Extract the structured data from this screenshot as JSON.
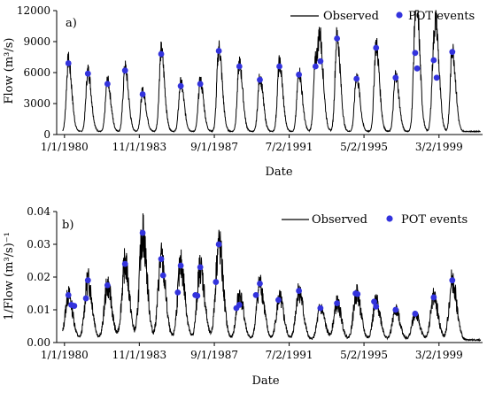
{
  "chart_data": [
    {
      "type": "line",
      "panel_label": "a)",
      "xlabel": "Date",
      "ylabel": "Flow (m³/s)",
      "ylim": [
        0,
        12000
      ],
      "y_ticks": [
        "0",
        "3000",
        "6000",
        "9000",
        "12000"
      ],
      "y_tick_values": [
        0,
        3000,
        6000,
        9000,
        12000
      ],
      "x_ticks": [
        "1/1/1980",
        "11/1/1983",
        "9/1/1987",
        "7/2/1991",
        "5/2/1995",
        "3/2/1999"
      ],
      "x_tick_values": [
        1980.0,
        1983.83,
        1987.67,
        1991.5,
        1995.33,
        1999.17
      ],
      "xlim": [
        1979.6,
        2001.4
      ],
      "legend": [
        {
          "label": "Observed",
          "kind": "line",
          "color": "#000000"
        },
        {
          "label": "POT events",
          "kind": "marker",
          "color": "#3333dd"
        }
      ],
      "legend_position": "top-right",
      "baseflow": 300,
      "observed_peaks": [
        {
          "x": 1980.2,
          "y": 6900
        },
        {
          "x": 1981.2,
          "y": 5900
        },
        {
          "x": 1982.2,
          "y": 4900
        },
        {
          "x": 1983.1,
          "y": 6200
        },
        {
          "x": 1984.0,
          "y": 3900
        },
        {
          "x": 1984.95,
          "y": 7800
        },
        {
          "x": 1985.95,
          "y": 4700
        },
        {
          "x": 1986.95,
          "y": 4900
        },
        {
          "x": 1987.9,
          "y": 8100
        },
        {
          "x": 1988.95,
          "y": 6600
        },
        {
          "x": 1990.0,
          "y": 5300
        },
        {
          "x": 1991.0,
          "y": 6600
        },
        {
          "x": 1992.0,
          "y": 5800
        },
        {
          "x": 1992.85,
          "y": 6600
        },
        {
          "x": 1993.1,
          "y": 7100
        },
        {
          "x": 1993.95,
          "y": 9300
        },
        {
          "x": 1994.95,
          "y": 5400
        },
        {
          "x": 1995.95,
          "y": 8400
        },
        {
          "x": 1996.95,
          "y": 5500
        },
        {
          "x": 1997.95,
          "y": 7900
        },
        {
          "x": 1998.05,
          "y": 6400
        },
        {
          "x": 1998.9,
          "y": 7200
        },
        {
          "x": 1999.05,
          "y": 5500
        },
        {
          "x": 1999.85,
          "y": 8000
        }
      ],
      "pot_events": {
        "x": [
          1980.2,
          1981.2,
          1982.2,
          1983.1,
          1984.0,
          1984.95,
          1985.95,
          1986.95,
          1987.9,
          1988.95,
          1990.0,
          1991.0,
          1992.0,
          1992.85,
          1993.1,
          1993.95,
          1994.95,
          1995.95,
          1996.95,
          1997.95,
          1998.05,
          1998.9,
          1999.05,
          1999.85
        ],
        "y": [
          6900,
          5900,
          4900,
          6200,
          3900,
          7800,
          4700,
          4900,
          8100,
          6600,
          5300,
          6600,
          5800,
          6600,
          7100,
          9300,
          5400,
          8400,
          5500,
          7900,
          6400,
          7200,
          5500,
          8000
        ]
      }
    },
    {
      "type": "line",
      "panel_label": "b)",
      "xlabel": "Date",
      "ylabel": "1/Flow (m³/s)⁻¹",
      "ylim": [
        0,
        0.04
      ],
      "y_ticks": [
        "0.00",
        "0.01",
        "0.02",
        "0.03",
        "0.04"
      ],
      "y_tick_values": [
        0,
        0.01,
        0.02,
        0.03,
        0.04
      ],
      "x_ticks": [
        "1/1/1980",
        "11/1/1983",
        "9/1/1987",
        "7/2/1991",
        "5/2/1995",
        "3/2/1999"
      ],
      "x_tick_values": [
        1980.0,
        1983.83,
        1987.67,
        1991.5,
        1995.33,
        1999.17
      ],
      "xlim": [
        1979.6,
        2001.4
      ],
      "legend": [
        {
          "label": "Observed",
          "kind": "line",
          "color": "#000000"
        },
        {
          "label": "POT events",
          "kind": "marker",
          "color": "#3333dd"
        }
      ],
      "legend_position": "top-right",
      "baseline": 0.0008,
      "observed_peaks": [
        {
          "x": 1980.2,
          "y": 0.0145
        },
        {
          "x": 1981.2,
          "y": 0.019
        },
        {
          "x": 1982.2,
          "y": 0.0175
        },
        {
          "x": 1983.1,
          "y": 0.024
        },
        {
          "x": 1984.0,
          "y": 0.0335
        },
        {
          "x": 1984.95,
          "y": 0.0255
        },
        {
          "x": 1985.95,
          "y": 0.0235
        },
        {
          "x": 1986.95,
          "y": 0.023
        },
        {
          "x": 1987.9,
          "y": 0.03
        },
        {
          "x": 1988.95,
          "y": 0.0145
        },
        {
          "x": 1990.0,
          "y": 0.018
        },
        {
          "x": 1991.0,
          "y": 0.0135
        },
        {
          "x": 1992.0,
          "y": 0.0158
        },
        {
          "x": 1993.1,
          "y": 0.0105
        },
        {
          "x": 1993.95,
          "y": 0.012
        },
        {
          "x": 1994.95,
          "y": 0.015
        },
        {
          "x": 1995.95,
          "y": 0.0125
        },
        {
          "x": 1996.95,
          "y": 0.01
        },
        {
          "x": 1997.95,
          "y": 0.0088
        },
        {
          "x": 1998.9,
          "y": 0.0138
        },
        {
          "x": 1999.85,
          "y": 0.019
        }
      ],
      "pot_events": {
        "x": [
          1980.2,
          1980.35,
          1980.5,
          1981.1,
          1981.2,
          1982.2,
          1983.1,
          1984.0,
          1984.95,
          1985.05,
          1985.8,
          1985.95,
          1986.7,
          1986.8,
          1986.95,
          1987.75,
          1987.9,
          1988.8,
          1988.95,
          1989.8,
          1990.0,
          1990.95,
          1992.0,
          1993.1,
          1993.95,
          1994.9,
          1995.0,
          1995.85,
          1995.95,
          1996.95,
          1997.95,
          1998.9,
          1999.85
        ],
        "y": [
          0.0145,
          0.0115,
          0.0112,
          0.0135,
          0.019,
          0.0175,
          0.024,
          0.0335,
          0.0255,
          0.0205,
          0.0153,
          0.0235,
          0.0145,
          0.0143,
          0.023,
          0.0185,
          0.03,
          0.0105,
          0.0115,
          0.0145,
          0.018,
          0.013,
          0.0158,
          0.0105,
          0.012,
          0.015,
          0.0148,
          0.0125,
          0.011,
          0.01,
          0.0088,
          0.0138,
          0.019
        ]
      }
    }
  ]
}
